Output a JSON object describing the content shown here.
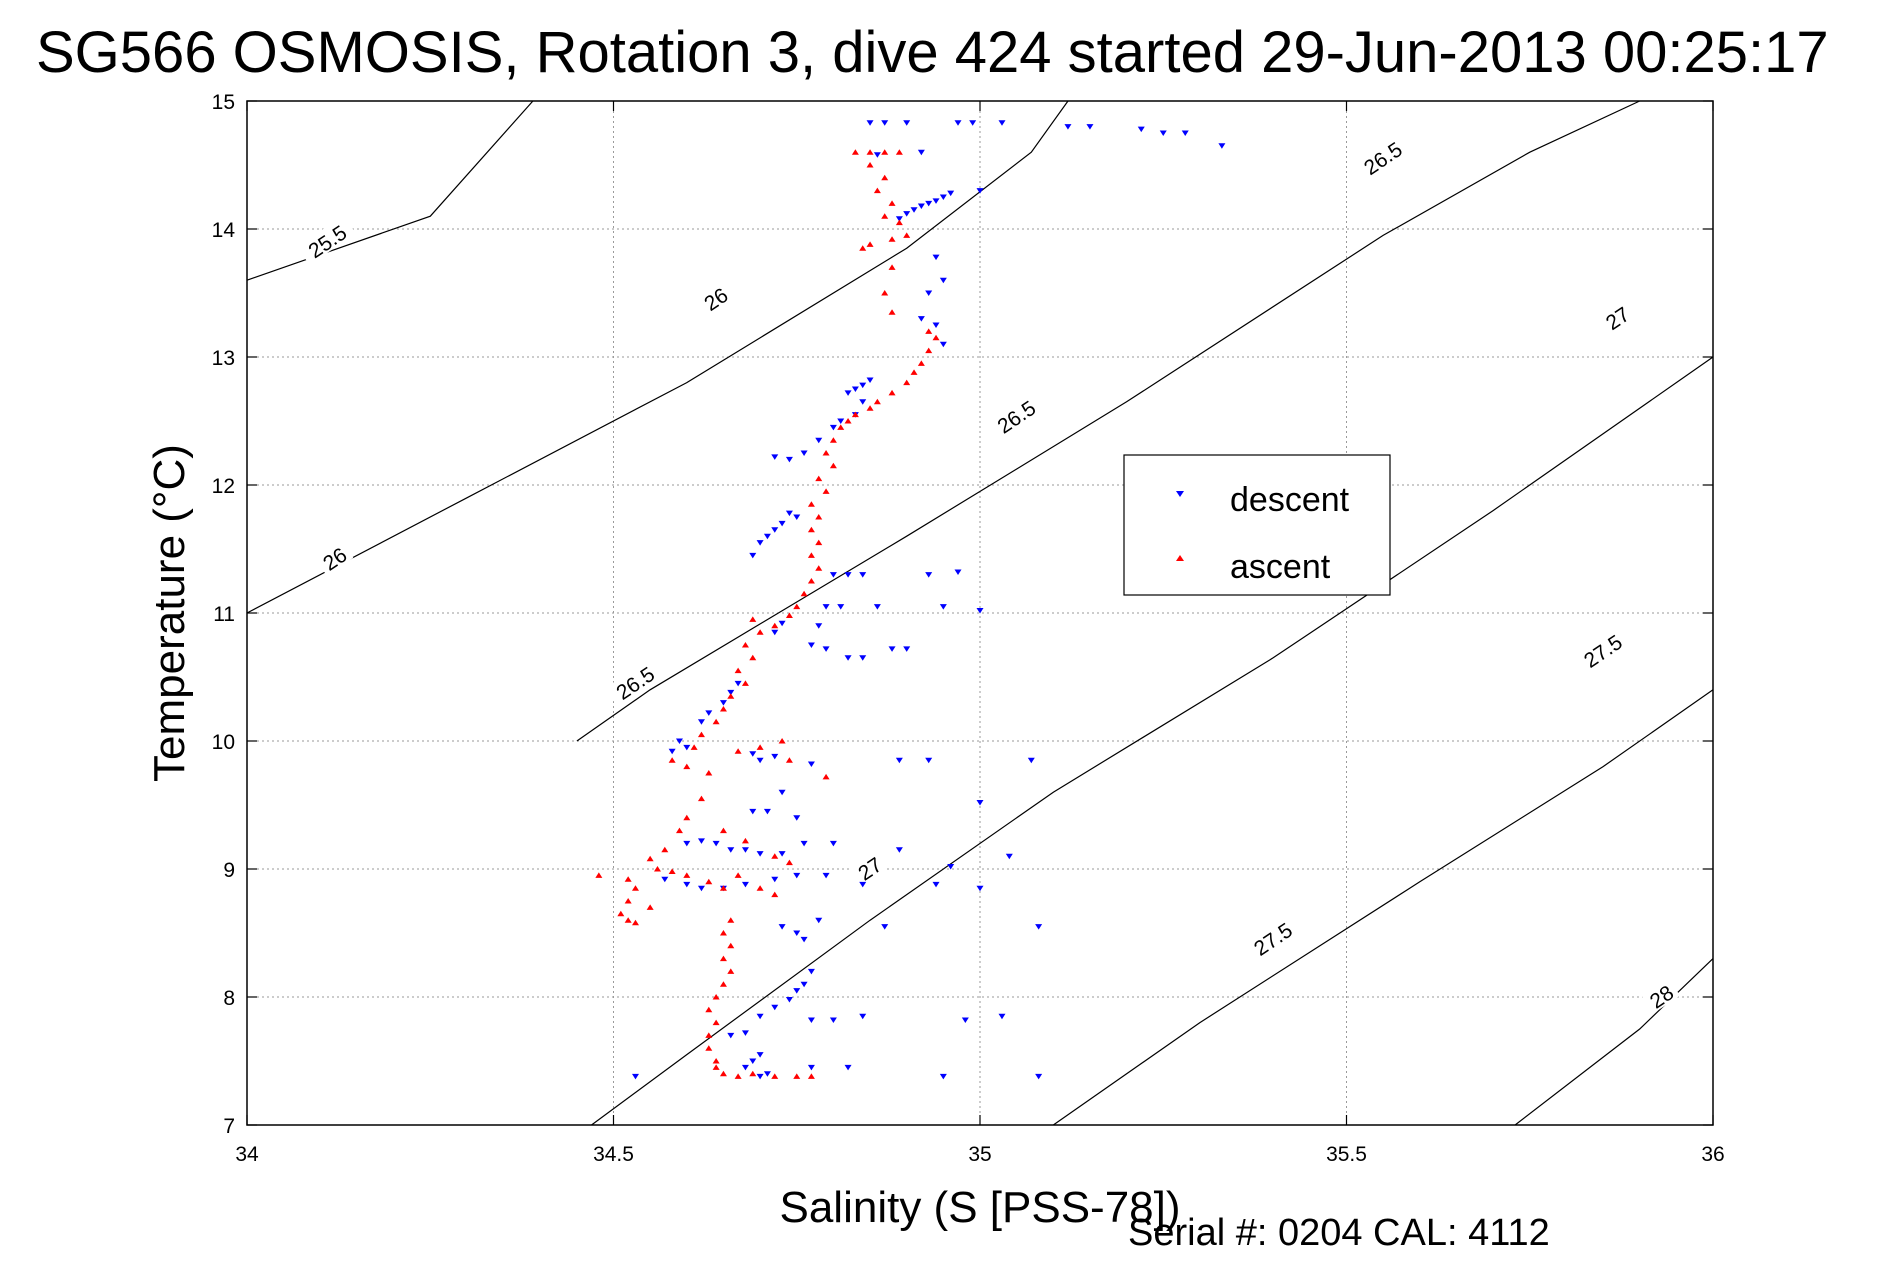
{
  "chart_data": {
    "type": "scatter",
    "title": "SG566 OSMOSIS, Rotation 3, dive 424 started 29-Jun-2013 00:25:17",
    "xlabel": "Salinity (S [PSS-78])",
    "ylabel": "Temperature (°C)",
    "xlim": [
      34,
      36
    ],
    "ylim": [
      7,
      15
    ],
    "xticks": [
      "34",
      "34.5",
      "35",
      "35.5",
      "36"
    ],
    "yticks": [
      "7",
      "8",
      "9",
      "10",
      "11",
      "12",
      "13",
      "14",
      "15"
    ],
    "grid": true,
    "legend_position": "center-right",
    "series": [
      {
        "name": "descent",
        "color": "#0000ff",
        "marker": "triangle-down",
        "points": [
          [
            34.85,
            14.83
          ],
          [
            34.87,
            14.83
          ],
          [
            34.9,
            14.83
          ],
          [
            34.97,
            14.83
          ],
          [
            34.99,
            14.83
          ],
          [
            35.03,
            14.83
          ],
          [
            35.12,
            14.8
          ],
          [
            35.15,
            14.8
          ],
          [
            35.22,
            14.78
          ],
          [
            35.25,
            14.75
          ],
          [
            35.28,
            14.75
          ],
          [
            35.33,
            14.65
          ],
          [
            34.92,
            14.6
          ],
          [
            34.86,
            14.58
          ],
          [
            34.96,
            14.28
          ],
          [
            34.95,
            14.25
          ],
          [
            34.94,
            14.22
          ],
          [
            34.93,
            14.2
          ],
          [
            34.92,
            14.18
          ],
          [
            34.91,
            14.15
          ],
          [
            34.9,
            14.12
          ],
          [
            34.89,
            14.08
          ],
          [
            35.0,
            14.3
          ],
          [
            34.94,
            13.78
          ],
          [
            34.95,
            13.6
          ],
          [
            34.93,
            13.5
          ],
          [
            34.92,
            13.3
          ],
          [
            34.94,
            13.25
          ],
          [
            34.95,
            13.1
          ],
          [
            34.85,
            12.82
          ],
          [
            34.84,
            12.78
          ],
          [
            34.83,
            12.75
          ],
          [
            34.82,
            12.72
          ],
          [
            34.84,
            12.65
          ],
          [
            34.83,
            12.55
          ],
          [
            34.81,
            12.5
          ],
          [
            34.8,
            12.45
          ],
          [
            34.78,
            12.35
          ],
          [
            34.76,
            12.25
          ],
          [
            34.74,
            12.2
          ],
          [
            34.72,
            12.22
          ],
          [
            34.74,
            11.78
          ],
          [
            34.73,
            11.7
          ],
          [
            34.72,
            11.65
          ],
          [
            34.71,
            11.6
          ],
          [
            34.7,
            11.55
          ],
          [
            34.69,
            11.45
          ],
          [
            34.75,
            11.75
          ],
          [
            34.8,
            11.3
          ],
          [
            34.82,
            11.3
          ],
          [
            34.84,
            11.3
          ],
          [
            34.93,
            11.3
          ],
          [
            34.97,
            11.32
          ],
          [
            34.79,
            11.05
          ],
          [
            34.81,
            11.05
          ],
          [
            34.86,
            11.05
          ],
          [
            34.95,
            11.05
          ],
          [
            35.0,
            11.02
          ],
          [
            34.73,
            10.92
          ],
          [
            34.72,
            10.85
          ],
          [
            34.78,
            10.9
          ],
          [
            34.77,
            10.75
          ],
          [
            34.79,
            10.72
          ],
          [
            34.82,
            10.65
          ],
          [
            34.84,
            10.65
          ],
          [
            34.88,
            10.72
          ],
          [
            34.9,
            10.72
          ],
          [
            34.67,
            10.45
          ],
          [
            34.66,
            10.38
          ],
          [
            34.65,
            10.3
          ],
          [
            34.63,
            10.22
          ],
          [
            34.62,
            10.15
          ],
          [
            34.59,
            10.0
          ],
          [
            34.6,
            9.95
          ],
          [
            34.58,
            9.92
          ],
          [
            34.69,
            9.9
          ],
          [
            34.7,
            9.85
          ],
          [
            34.72,
            9.88
          ],
          [
            34.77,
            9.82
          ],
          [
            34.89,
            9.85
          ],
          [
            34.93,
            9.85
          ],
          [
            35.07,
            9.85
          ],
          [
            35.0,
            9.52
          ],
          [
            34.73,
            9.6
          ],
          [
            34.69,
            9.45
          ],
          [
            34.71,
            9.45
          ],
          [
            34.75,
            9.4
          ],
          [
            34.6,
            9.2
          ],
          [
            34.62,
            9.22
          ],
          [
            34.64,
            9.2
          ],
          [
            34.66,
            9.15
          ],
          [
            34.68,
            9.15
          ],
          [
            34.7,
            9.12
          ],
          [
            34.73,
            9.12
          ],
          [
            34.76,
            9.2
          ],
          [
            34.8,
            9.2
          ],
          [
            34.89,
            9.15
          ],
          [
            34.96,
            9.02
          ],
          [
            35.04,
            9.1
          ],
          [
            34.57,
            8.92
          ],
          [
            34.6,
            8.88
          ],
          [
            34.62,
            8.85
          ],
          [
            34.65,
            8.85
          ],
          [
            34.68,
            8.88
          ],
          [
            34.72,
            8.92
          ],
          [
            34.75,
            8.95
          ],
          [
            34.79,
            8.95
          ],
          [
            34.84,
            8.88
          ],
          [
            34.94,
            8.88
          ],
          [
            35.0,
            8.85
          ],
          [
            34.73,
            8.55
          ],
          [
            34.75,
            8.5
          ],
          [
            34.76,
            8.45
          ],
          [
            34.78,
            8.6
          ],
          [
            34.87,
            8.55
          ],
          [
            35.08,
            8.55
          ],
          [
            34.77,
            8.2
          ],
          [
            34.76,
            8.1
          ],
          [
            34.75,
            8.05
          ],
          [
            34.74,
            7.98
          ],
          [
            34.72,
            7.92
          ],
          [
            34.7,
            7.85
          ],
          [
            34.68,
            7.72
          ],
          [
            34.66,
            7.7
          ],
          [
            34.77,
            7.82
          ],
          [
            34.8,
            7.82
          ],
          [
            34.84,
            7.85
          ],
          [
            34.98,
            7.82
          ],
          [
            35.03,
            7.85
          ],
          [
            34.7,
            7.55
          ],
          [
            34.69,
            7.5
          ],
          [
            34.68,
            7.45
          ],
          [
            34.71,
            7.4
          ],
          [
            34.77,
            7.45
          ],
          [
            34.82,
            7.45
          ],
          [
            34.53,
            7.38
          ],
          [
            34.7,
            7.38
          ],
          [
            34.95,
            7.38
          ],
          [
            35.08,
            7.38
          ]
        ]
      },
      {
        "name": "ascent",
        "color": "#ff0000",
        "marker": "triangle-up",
        "points": [
          [
            34.83,
            14.6
          ],
          [
            34.85,
            14.6
          ],
          [
            34.87,
            14.6
          ],
          [
            34.89,
            14.6
          ],
          [
            34.85,
            14.5
          ],
          [
            34.87,
            14.4
          ],
          [
            34.86,
            14.3
          ],
          [
            34.88,
            14.2
          ],
          [
            34.87,
            14.1
          ],
          [
            34.89,
            14.05
          ],
          [
            34.9,
            13.95
          ],
          [
            34.88,
            13.92
          ],
          [
            34.85,
            13.88
          ],
          [
            34.84,
            13.85
          ],
          [
            34.88,
            13.7
          ],
          [
            34.87,
            13.5
          ],
          [
            34.88,
            13.35
          ],
          [
            34.93,
            13.2
          ],
          [
            34.94,
            13.15
          ],
          [
            34.93,
            13.05
          ],
          [
            34.92,
            12.95
          ],
          [
            34.91,
            12.88
          ],
          [
            34.9,
            12.8
          ],
          [
            34.88,
            12.72
          ],
          [
            34.86,
            12.65
          ],
          [
            34.85,
            12.6
          ],
          [
            34.83,
            12.55
          ],
          [
            34.82,
            12.5
          ],
          [
            34.81,
            12.45
          ],
          [
            34.8,
            12.35
          ],
          [
            34.79,
            12.25
          ],
          [
            34.8,
            12.15
          ],
          [
            34.78,
            12.05
          ],
          [
            34.79,
            11.95
          ],
          [
            34.77,
            11.85
          ],
          [
            34.78,
            11.75
          ],
          [
            34.77,
            11.65
          ],
          [
            34.78,
            11.55
          ],
          [
            34.77,
            11.45
          ],
          [
            34.78,
            11.35
          ],
          [
            34.77,
            11.25
          ],
          [
            34.76,
            11.15
          ],
          [
            34.75,
            11.05
          ],
          [
            34.74,
            10.98
          ],
          [
            34.72,
            10.9
          ],
          [
            34.7,
            10.85
          ],
          [
            34.69,
            10.95
          ],
          [
            34.68,
            10.75
          ],
          [
            34.69,
            10.65
          ],
          [
            34.67,
            10.55
          ],
          [
            34.68,
            10.45
          ],
          [
            34.66,
            10.35
          ],
          [
            34.65,
            10.25
          ],
          [
            34.64,
            10.15
          ],
          [
            34.62,
            10.05
          ],
          [
            34.61,
            9.95
          ],
          [
            34.58,
            9.85
          ],
          [
            34.6,
            9.8
          ],
          [
            34.63,
            9.75
          ],
          [
            34.67,
            9.92
          ],
          [
            34.7,
            9.95
          ],
          [
            34.73,
            10.0
          ],
          [
            34.74,
            9.85
          ],
          [
            34.79,
            9.72
          ],
          [
            34.62,
            9.55
          ],
          [
            34.6,
            9.4
          ],
          [
            34.59,
            9.3
          ],
          [
            34.57,
            9.15
          ],
          [
            34.56,
            9.0
          ],
          [
            34.55,
            9.08
          ],
          [
            34.58,
            8.98
          ],
          [
            34.6,
            8.95
          ],
          [
            34.63,
            8.9
          ],
          [
            34.65,
            8.85
          ],
          [
            34.67,
            8.95
          ],
          [
            34.7,
            8.85
          ],
          [
            34.72,
            8.8
          ],
          [
            34.72,
            9.1
          ],
          [
            34.74,
            9.05
          ],
          [
            34.68,
            9.22
          ],
          [
            34.65,
            9.3
          ],
          [
            34.52,
            8.92
          ],
          [
            34.53,
            8.85
          ],
          [
            34.52,
            8.75
          ],
          [
            34.51,
            8.65
          ],
          [
            34.52,
            8.6
          ],
          [
            34.53,
            8.58
          ],
          [
            34.55,
            8.7
          ],
          [
            34.48,
            8.95
          ],
          [
            34.66,
            8.6
          ],
          [
            34.65,
            8.5
          ],
          [
            34.66,
            8.4
          ],
          [
            34.65,
            8.3
          ],
          [
            34.66,
            8.2
          ],
          [
            34.65,
            8.1
          ],
          [
            34.64,
            8.0
          ],
          [
            34.63,
            7.9
          ],
          [
            34.64,
            7.8
          ],
          [
            34.63,
            7.7
          ],
          [
            34.63,
            7.6
          ],
          [
            34.64,
            7.5
          ],
          [
            34.64,
            7.45
          ],
          [
            34.65,
            7.4
          ],
          [
            34.67,
            7.38
          ],
          [
            34.69,
            7.4
          ],
          [
            34.72,
            7.38
          ],
          [
            34.75,
            7.38
          ],
          [
            34.77,
            7.38
          ]
        ]
      }
    ],
    "contours": [
      {
        "label": "25.5",
        "points": [
          [
            34.0,
            13.6
          ],
          [
            34.25,
            14.1
          ],
          [
            34.39,
            15.0
          ]
        ]
      },
      {
        "label": "26",
        "points": [
          [
            34.0,
            11.0
          ],
          [
            34.3,
            11.9
          ],
          [
            34.6,
            12.8
          ],
          [
            34.9,
            13.85
          ],
          [
            35.07,
            14.6
          ],
          [
            35.12,
            15.0
          ]
        ]
      },
      {
        "label": "26.5",
        "points": [
          [
            34.45,
            10.0
          ],
          [
            34.55,
            10.4
          ],
          [
            34.9,
            11.6
          ],
          [
            35.2,
            12.65
          ],
          [
            35.55,
            13.95
          ],
          [
            35.75,
            14.6
          ],
          [
            35.9,
            15.0
          ]
        ]
      },
      {
        "label": "27",
        "points": [
          [
            34.47,
            7.0
          ],
          [
            34.6,
            7.55
          ],
          [
            34.85,
            8.6
          ],
          [
            35.1,
            9.6
          ],
          [
            35.4,
            10.65
          ],
          [
            35.7,
            11.8
          ],
          [
            36.0,
            13.0
          ]
        ]
      },
      {
        "label": "27.5",
        "points": [
          [
            35.1,
            7.0
          ],
          [
            35.3,
            7.8
          ],
          [
            35.6,
            8.9
          ],
          [
            35.85,
            9.8
          ],
          [
            36.0,
            10.4
          ]
        ]
      },
      {
        "label": "28",
        "points": [
          [
            35.73,
            7.0
          ],
          [
            35.9,
            7.75
          ],
          [
            36.0,
            8.3
          ]
        ]
      }
    ],
    "contour_labels": [
      {
        "text": "25.5",
        "x": 34.11,
        "y": 13.9
      },
      {
        "text": "26",
        "x": 34.64,
        "y": 13.45
      },
      {
        "text": "26.5",
        "x": 35.55,
        "y": 14.55
      },
      {
        "text": "26.5",
        "x": 35.05,
        "y": 12.53
      },
      {
        "text": "26.5",
        "x": 34.53,
        "y": 10.45
      },
      {
        "text": "26",
        "x": 34.12,
        "y": 11.42
      },
      {
        "text": "27",
        "x": 35.87,
        "y": 13.3
      },
      {
        "text": "27",
        "x": 34.85,
        "y": 9.0
      },
      {
        "text": "27.5",
        "x": 35.85,
        "y": 10.7
      },
      {
        "text": "27.5",
        "x": 35.4,
        "y": 8.45
      },
      {
        "text": "28",
        "x": 35.93,
        "y": 8.0
      }
    ]
  },
  "footer": "Serial #: 0204  CAL: 4112"
}
